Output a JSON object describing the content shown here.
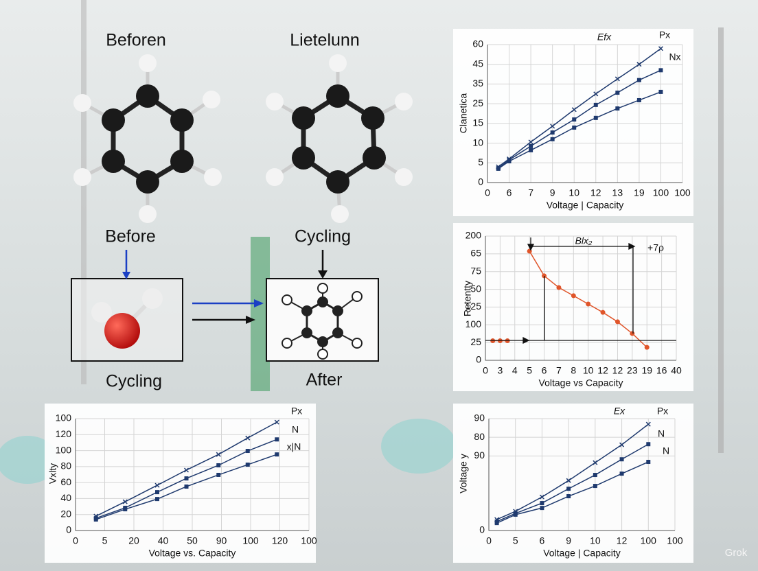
{
  "labels": {
    "top_left": "Beforen",
    "top_middle": "Lietelunn",
    "before": "Before",
    "cycling_top": "Cycling",
    "cycling_bottom": "Cycling",
    "after": "After",
    "watermark": "Grok"
  },
  "chart_data": [
    {
      "type": "line",
      "title": "Efx",
      "xlabel": "Voltage | Capacity",
      "ylabel": "Clanetica",
      "grid": true,
      "xlim": [
        0,
        9
      ],
      "xticks": [
        0,
        {
          "value": 1,
          "label": "6"
        },
        {
          "value": 2,
          "label": "7"
        },
        {
          "value": 3,
          "label": "9"
        },
        {
          "value": 4,
          "label": "10"
        },
        {
          "value": 5,
          "label": "12"
        },
        {
          "value": 6,
          "label": "13"
        },
        {
          "value": 7,
          "label": "19"
        },
        {
          "value": 8,
          "label": "100"
        },
        {
          "value": 9,
          "label": "100"
        }
      ],
      "ylim": [
        0,
        70
      ],
      "yticks": [
        0,
        {
          "value": 10,
          "label": "5"
        },
        {
          "value": 20,
          "label": "10"
        },
        {
          "value": 30,
          "label": "15"
        },
        {
          "value": 40,
          "label": "25"
        },
        {
          "value": 50,
          "label": "35"
        },
        {
          "value": 60,
          "label": "45"
        },
        {
          "value": 70,
          "label": "60"
        }
      ],
      "x": [
        0.5,
        1,
        2,
        3,
        4,
        5,
        6,
        7,
        8
      ],
      "series": [
        {
          "name": "Px",
          "color": "#1f3a6e",
          "values": [
            8,
            12,
            20.6,
            28.6,
            37,
            45,
            52.6,
            60,
            68
          ]
        },
        {
          "name": "Nx",
          "color": "#1f3a6e",
          "values": [
            7.3,
            11.5,
            18.5,
            25.4,
            32,
            39.4,
            45.6,
            52,
            57
          ]
        },
        {
          "color": "#1f3a6e",
          "values": [
            7,
            10.8,
            16.4,
            22,
            27.9,
            32.8,
            37.6,
            41.8,
            46
          ]
        }
      ]
    },
    {
      "type": "line",
      "title": "Blx₂",
      "annotation": "+7ρ",
      "xlabel": "Voltage vs Capacity",
      "ylabel": "Retentty",
      "grid": true,
      "xlim": [
        0,
        13
      ],
      "xticks": [
        0,
        {
          "value": 1,
          "label": "3"
        },
        {
          "value": 2,
          "label": "4"
        },
        {
          "value": 3,
          "label": "5"
        },
        {
          "value": 4,
          "label": "6"
        },
        {
          "value": 5,
          "label": "7"
        },
        {
          "value": 6,
          "label": "8"
        },
        {
          "value": 7,
          "label": "10"
        },
        {
          "value": 8,
          "label": "12"
        },
        {
          "value": 9,
          "label": "12"
        },
        {
          "value": 10,
          "label": "23"
        },
        {
          "value": 11,
          "label": "19"
        },
        {
          "value": 12,
          "label": "16"
        },
        {
          "value": 13,
          "label": "40"
        }
      ],
      "ylim": [
        0,
        70
      ],
      "yticks": [
        0,
        {
          "value": 10,
          "label": "25"
        },
        {
          "value": 20,
          "label": "100"
        },
        {
          "value": 30,
          "label": "125"
        },
        {
          "value": 40,
          "label": "50"
        },
        {
          "value": 50,
          "label": "75"
        },
        {
          "value": 60,
          "label": "65"
        },
        {
          "value": 70,
          "label": "200"
        }
      ],
      "x": [
        0.5,
        1,
        1.5,
        2,
        3,
        4,
        5,
        6,
        7,
        8,
        9,
        10,
        11
      ],
      "series": [
        {
          "color": "#e0552a",
          "values": [
            11,
            11,
            11,
            null,
            61.5,
            47.6,
            41,
            36.4,
            31.7,
            27,
            21.7,
            15.1,
            7.3
          ]
        }
      ]
    },
    {
      "type": "line",
      "xlabel": "Voltage vs. Capacity",
      "ylabel": "Vxlty",
      "grid": true,
      "xlim": [
        0,
        8
      ],
      "xticks": [
        0,
        {
          "value": 1,
          "label": "5"
        },
        {
          "value": 2,
          "label": "20"
        },
        {
          "value": 3,
          "label": "40"
        },
        {
          "value": 4,
          "label": "50"
        },
        {
          "value": 5,
          "label": "90"
        },
        {
          "value": 6,
          "label": "100"
        },
        {
          "value": 7,
          "label": "120"
        },
        {
          "value": 8,
          "label": "100"
        }
      ],
      "ylim": [
        0,
        70
      ],
      "yticks": [
        0,
        {
          "value": 10,
          "label": "20"
        },
        {
          "value": 20,
          "label": "40"
        },
        {
          "value": 30,
          "label": "60"
        },
        {
          "value": 40,
          "label": "80"
        },
        {
          "value": 50,
          "label": "100"
        },
        {
          "value": 60,
          "label": "120"
        },
        {
          "value": 70,
          "label": "100"
        }
      ],
      "x": [
        0.7,
        1.7,
        2.8,
        3.8,
        4.9,
        5.9,
        6.9
      ],
      "series": [
        {
          "name": "Px",
          "color": "#1f3a6e",
          "values": [
            9,
            18,
            28.3,
            37.8,
            47.6,
            57.9,
            67.8
          ]
        },
        {
          "name": "N",
          "color": "#1f3a6e",
          "values": [
            7.7,
            14.2,
            24,
            32.6,
            40.8,
            49.8,
            57
          ]
        },
        {
          "name": "x|N",
          "color": "#1f3a6e",
          "values": [
            6.9,
            13.3,
            19.7,
            27.5,
            34.8,
            41.2,
            47.6
          ]
        }
      ]
    },
    {
      "type": "line",
      "title": "Ex",
      "xlabel": "Voltage | Capacity",
      "ylabel": "Voltage y",
      "grid": true,
      "xlim": [
        0,
        7
      ],
      "xticks": [
        0,
        {
          "value": 1,
          "label": "5"
        },
        {
          "value": 2,
          "label": "6"
        },
        {
          "value": 3,
          "label": "9"
        },
        {
          "value": 4,
          "label": "10"
        },
        {
          "value": 5,
          "label": "12"
        },
        {
          "value": 6,
          "label": "100"
        },
        {
          "value": 7,
          "label": "100"
        }
      ],
      "ylim": [
        0,
        6
      ],
      "yticks": [
        0,
        {
          "value": 4,
          "label": "90"
        },
        {
          "value": 5,
          "label": "80"
        },
        {
          "value": 6,
          "label": "90"
        }
      ],
      "x": [
        0.3,
        1,
        2,
        3,
        4,
        5,
        6
      ],
      "series": [
        {
          "name": "Px",
          "color": "#1f3a6e",
          "values": [
            0.59,
            1.03,
            1.8,
            2.68,
            3.64,
            4.6,
            5.7
          ]
        },
        {
          "name": "N",
          "color": "#1f3a6e",
          "values": [
            0.48,
            0.92,
            1.47,
            2.24,
            2.98,
            3.82,
            4.63
          ]
        },
        {
          "name": "N",
          "color": "#1f3a6e",
          "values": [
            0.4,
            0.85,
            1.21,
            1.84,
            2.39,
            3.05,
            3.68
          ]
        }
      ]
    }
  ]
}
